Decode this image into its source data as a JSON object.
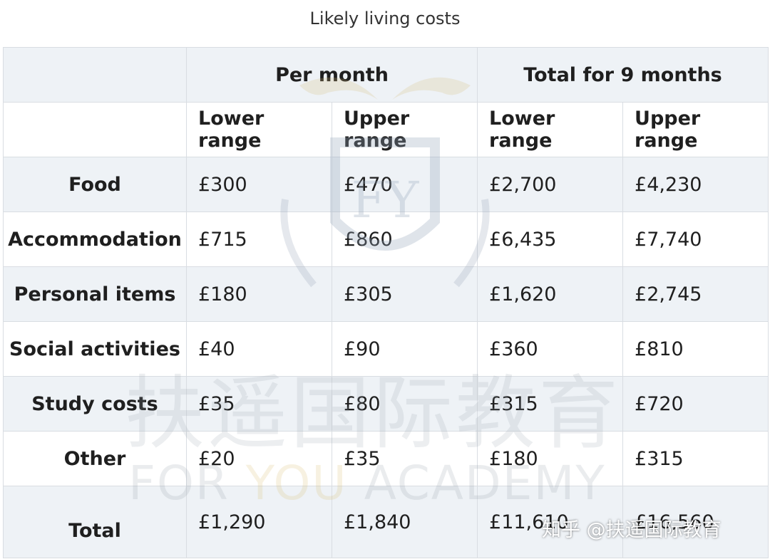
{
  "caption": "Likely living costs",
  "table": {
    "group_headers": [
      "Per month",
      "Total for 9 months"
    ],
    "sub_headers": [
      "Lower range",
      "Upper range",
      "Lower range",
      "Upper range"
    ],
    "rows": [
      {
        "label": "Food",
        "values": [
          "£300",
          "£470",
          "£2,700",
          "£4,230"
        ]
      },
      {
        "label": "Accommodation",
        "values": [
          "£715",
          "£860",
          "£6,435",
          "£7,740"
        ]
      },
      {
        "label": "Personal items",
        "values": [
          "£180",
          "£305",
          "£1,620",
          "£2,745"
        ]
      },
      {
        "label": "Social activities",
        "values": [
          "£40",
          "£90",
          "£360",
          "£810"
        ]
      },
      {
        "label": "Study costs",
        "values": [
          "£35",
          "£80",
          "£315",
          "£720"
        ]
      },
      {
        "label": "Other",
        "values": [
          "£20",
          "£35",
          "£180",
          "£315"
        ]
      },
      {
        "label": "Total",
        "values": [
          "£1,290",
          "£1,840",
          "£11,610",
          "£16,560"
        ]
      }
    ]
  },
  "watermark": {
    "chinese": "扶遥国际教育",
    "english_a": "FOR ",
    "english_b": "YOU",
    "english_c": " ACADEMY",
    "logo_letters": "FY"
  },
  "credit": "知乎 @扶遥国际教育"
}
